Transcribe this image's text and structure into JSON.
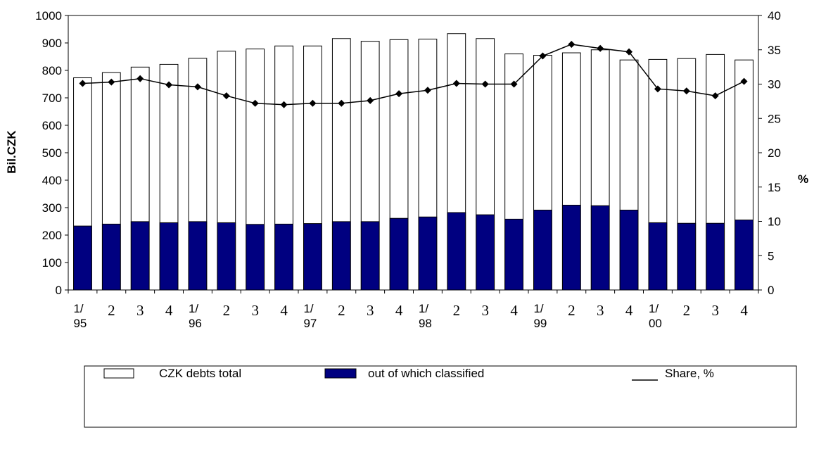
{
  "chart_data": {
    "type": "bar",
    "categories": [
      "1/\n95",
      "2",
      "3",
      "4",
      "1/\n96",
      "2",
      "3",
      "4",
      "1/\n97",
      "2",
      "3",
      "4",
      "1/\n98",
      "2",
      "3",
      "4",
      "1/\n99",
      "2",
      "3",
      "4",
      "1/\n00",
      "2",
      "3",
      "4"
    ],
    "series": [
      {
        "name": "CZK debts total",
        "axis": "left",
        "kind": "bar",
        "values": [
          773,
          792,
          812,
          822,
          844,
          870,
          878,
          889,
          889,
          916,
          906,
          912,
          914,
          934,
          916,
          860,
          855,
          864,
          875,
          838,
          840,
          843,
          858,
          838
        ]
      },
      {
        "name": "out of which classified",
        "axis": "left",
        "kind": "bar-overlay",
        "values": [
          233,
          240,
          249,
          245,
          249,
          245,
          239,
          240,
          242,
          249,
          249,
          261,
          266,
          282,
          274,
          258,
          291,
          309,
          307,
          291,
          245,
          243,
          243,
          255
        ]
      },
      {
        "name": "Share, %",
        "axis": "right",
        "kind": "line",
        "values": [
          30.1,
          30.3,
          30.8,
          29.9,
          29.6,
          28.3,
          27.2,
          27.0,
          27.2,
          27.2,
          27.6,
          28.6,
          29.1,
          30.1,
          30.0,
          30.0,
          34.1,
          35.8,
          35.2,
          34.7,
          29.3,
          29.0,
          28.3,
          30.4
        ]
      }
    ],
    "ylabel": "Bil.CZK",
    "y2label": "%",
    "ylim": [
      0,
      1000
    ],
    "y2lim": [
      0,
      40
    ],
    "yticks": [
      "0",
      "100",
      "200",
      "300",
      "400",
      "500",
      "600",
      "700",
      "800",
      "900",
      "1000"
    ],
    "y2ticks": [
      "0",
      "5",
      "10",
      "15",
      "20",
      "25",
      "30",
      "35",
      "40"
    ],
    "colors": {
      "total_fill": "#ffffff",
      "classified_fill": "#000080",
      "line": "#000000"
    },
    "grid": false,
    "legend_position": "bottom"
  },
  "legend": {
    "items": [
      {
        "label": "CZK debts total",
        "swatch": "hollow-rect"
      },
      {
        "label": "out of which classified",
        "swatch": "filled-rect"
      },
      {
        "label": "Share, %",
        "swatch": "line"
      }
    ]
  }
}
